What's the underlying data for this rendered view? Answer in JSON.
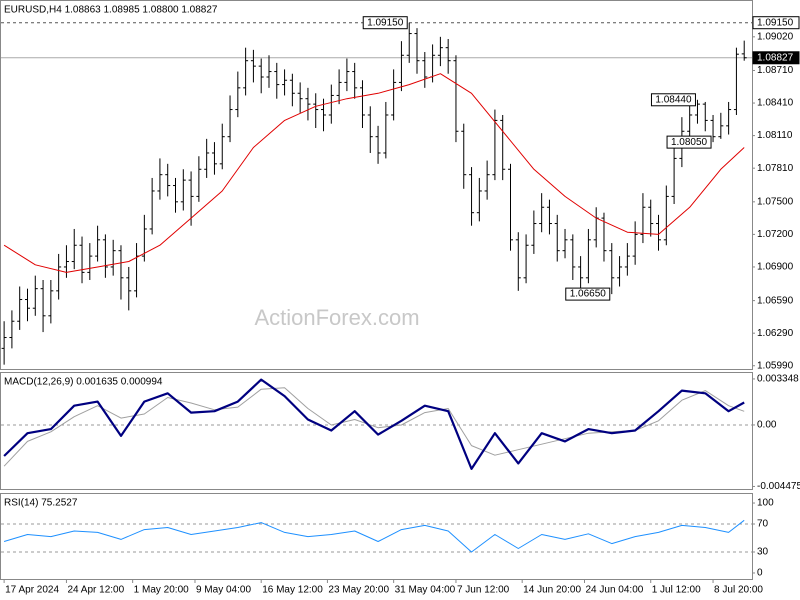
{
  "chart_data": [
    {
      "type": "ohlc",
      "title": "EURUSD,H4  1.08863 1.08985 1.08800 1.08827",
      "watermark": "ActionForex.com",
      "color": "#000000",
      "open": [
        1.0615,
        1.0625,
        1.064,
        1.066,
        1.0652,
        1.067,
        1.0645,
        1.0668,
        1.069,
        1.0695,
        1.071,
        1.0685,
        1.07,
        1.0715,
        1.069,
        1.0705,
        1.068,
        1.0668,
        1.07,
        1.0725,
        1.076,
        1.0775,
        1.0765,
        1.075,
        1.077,
        1.0755,
        1.078,
        1.0795,
        1.0785,
        1.081,
        1.0835,
        1.0855,
        1.088,
        1.0875,
        1.0865,
        1.087,
        1.0858,
        1.0862,
        1.085,
        1.0845,
        1.084,
        1.0835,
        1.083,
        1.0848,
        1.086,
        1.087,
        1.0855,
        1.083,
        1.081,
        1.0795,
        1.083,
        1.086,
        1.0885,
        1.0905,
        1.088,
        1.0865,
        1.0885,
        1.0892,
        1.088,
        1.0815,
        1.0775,
        1.074,
        1.076,
        1.0775,
        1.0825,
        1.078,
        1.0715,
        1.068,
        1.071,
        1.073,
        1.0745,
        1.073,
        1.0705,
        1.0715,
        1.069,
        1.068,
        1.0715,
        1.0735,
        1.0705,
        1.068,
        1.069,
        1.07,
        1.072,
        1.0745,
        1.073,
        1.0715,
        1.0755,
        1.079,
        1.0815,
        1.083,
        1.084,
        1.0825,
        1.081,
        1.082,
        1.0835,
        1.08863
      ],
      "high": [
        1.064,
        1.065,
        1.0672,
        1.067,
        1.0682,
        1.0678,
        1.0678,
        1.0702,
        1.071,
        1.0725,
        1.0718,
        1.0712,
        1.0728,
        1.072,
        1.0715,
        1.071,
        1.069,
        1.0712,
        1.0738,
        1.0772,
        1.079,
        1.0785,
        1.0772,
        1.078,
        1.0778,
        1.0792,
        1.0808,
        1.0805,
        1.0822,
        1.0848,
        1.087,
        1.0892,
        1.089,
        1.0882,
        1.0885,
        1.0878,
        1.0872,
        1.0868,
        1.086,
        1.0855,
        1.085,
        1.0845,
        1.0858,
        1.0872,
        1.0882,
        1.0878,
        1.0862,
        1.0838,
        1.082,
        1.0842,
        1.0872,
        1.0898,
        1.0915,
        1.091,
        1.0888,
        1.0895,
        1.0902,
        1.09,
        1.0885,
        1.0822,
        1.0782,
        1.0772,
        1.0788,
        1.0835,
        1.083,
        1.0785,
        1.0722,
        1.072,
        1.0742,
        1.0758,
        1.0752,
        1.0738,
        1.0725,
        1.072,
        1.07,
        1.0725,
        1.0745,
        1.074,
        1.0712,
        1.07,
        1.0712,
        1.0732,
        1.0758,
        1.0752,
        1.0738,
        1.0765,
        1.0802,
        1.0828,
        1.084,
        1.0844,
        1.0842,
        1.083,
        1.0832,
        1.0842,
        1.0892,
        1.08985
      ],
      "low": [
        1.06,
        1.0615,
        1.0632,
        1.064,
        1.0645,
        1.063,
        1.0638,
        1.066,
        1.068,
        1.0688,
        1.0675,
        1.0678,
        1.0695,
        1.068,
        1.0682,
        1.066,
        1.065,
        1.0662,
        1.0695,
        1.072,
        1.0752,
        1.0755,
        1.074,
        1.0742,
        1.0728,
        1.075,
        1.0772,
        1.0775,
        1.078,
        1.0805,
        1.0828,
        1.0848,
        1.086,
        1.085,
        1.0855,
        1.0845,
        1.0848,
        1.0838,
        1.0832,
        1.0825,
        1.0818,
        1.0815,
        1.0822,
        1.084,
        1.0852,
        1.0845,
        1.0818,
        1.0795,
        1.0785,
        1.079,
        1.0825,
        1.0852,
        1.0878,
        1.0868,
        1.0855,
        1.086,
        1.0875,
        1.0868,
        1.0805,
        1.0762,
        1.0728,
        1.0732,
        1.0752,
        1.077,
        1.077,
        1.0705,
        1.0668,
        1.0675,
        1.0702,
        1.0722,
        1.072,
        1.0695,
        1.0698,
        1.0678,
        1.067,
        1.0675,
        1.0708,
        1.0695,
        1.0665,
        1.0672,
        1.0682,
        1.0692,
        1.0712,
        1.0718,
        1.0705,
        1.071,
        1.0748,
        1.0782,
        1.0808,
        1.0822,
        1.0815,
        1.0805,
        1.0808,
        1.0812,
        1.083,
        1.088
      ],
      "close": [
        1.0625,
        1.064,
        1.066,
        1.0652,
        1.067,
        1.0645,
        1.0668,
        1.069,
        1.0695,
        1.071,
        1.0685,
        1.07,
        1.0715,
        1.069,
        1.0705,
        1.068,
        1.0668,
        1.07,
        1.0725,
        1.076,
        1.0775,
        1.0765,
        1.075,
        1.077,
        1.0755,
        1.078,
        1.0795,
        1.0785,
        1.081,
        1.0835,
        1.0855,
        1.088,
        1.0875,
        1.0865,
        1.087,
        1.0858,
        1.0862,
        1.085,
        1.0845,
        1.084,
        1.0835,
        1.083,
        1.0848,
        1.086,
        1.087,
        1.0855,
        1.083,
        1.081,
        1.0795,
        1.083,
        1.086,
        1.0885,
        1.0905,
        1.088,
        1.0865,
        1.0885,
        1.0892,
        1.088,
        1.0815,
        1.0775,
        1.074,
        1.076,
        1.0775,
        1.0825,
        1.078,
        1.0715,
        1.068,
        1.071,
        1.073,
        1.0745,
        1.073,
        1.0705,
        1.0715,
        1.069,
        1.068,
        1.0715,
        1.0735,
        1.0705,
        1.068,
        1.069,
        1.07,
        1.072,
        1.0745,
        1.073,
        1.0715,
        1.0755,
        1.079,
        1.0815,
        1.083,
        1.084,
        1.0825,
        1.081,
        1.082,
        1.0835,
        1.0886,
        1.08827
      ],
      "ma": {
        "color": "#e00000",
        "x": [
          0,
          4,
          8,
          12,
          16,
          20,
          24,
          28,
          32,
          36,
          40,
          44,
          48,
          52,
          56,
          60,
          64,
          68,
          72,
          76,
          80,
          84,
          88,
          92,
          95
        ],
        "values": [
          1.071,
          1.0692,
          1.0685,
          1.069,
          1.0695,
          1.071,
          1.0735,
          1.076,
          1.08,
          1.0825,
          1.0838,
          1.0845,
          1.085,
          1.0858,
          1.0868,
          1.085,
          1.0815,
          1.078,
          1.0755,
          1.0735,
          1.0722,
          1.072,
          1.0745,
          1.078,
          1.08
        ]
      },
      "xlim": [
        -0.4,
        96
      ],
      "ylim": [
        1.0596,
        1.0935
      ],
      "yticks": [
        {
          "value": 1.0599,
          "label": "1.05990"
        },
        {
          "value": 1.0629,
          "label": "1.06290"
        },
        {
          "value": 1.0659,
          "label": "1.06590"
        },
        {
          "value": 1.069,
          "label": "1.06900"
        },
        {
          "value": 1.072,
          "label": "1.07200"
        },
        {
          "value": 1.075,
          "label": "1.07500"
        },
        {
          "value": 1.0781,
          "label": "1.07810"
        },
        {
          "value": 1.0811,
          "label": "1.08110"
        },
        {
          "value": 1.0841,
          "label": "1.08410"
        },
        {
          "value": 1.0871,
          "label": "1.08710"
        },
        {
          "value": 1.0902,
          "label": "1.09020"
        }
      ],
      "price_lines": [
        {
          "value": 1.0915,
          "label": "1.09150",
          "style": "dashed"
        },
        {
          "value": 1.08827,
          "label": "1.08827",
          "style": "current"
        }
      ],
      "annotations": [
        {
          "text": "1.09150",
          "x": 52,
          "y": 1.0915
        },
        {
          "text": "1.08440",
          "x": 89,
          "y": 1.0844
        },
        {
          "text": "1.08050",
          "x": 91,
          "y": 1.0805
        },
        {
          "text": "1.06650",
          "x": 78,
          "y": 1.0665
        }
      ]
    },
    {
      "type": "line",
      "title": "MACD(12,26,9) 0.001635 0.000994",
      "xlim": [
        -0.4,
        96
      ],
      "ylim": [
        -0.00466,
        0.00378
      ],
      "yticks": [
        0.003348,
        {
          "value": 0,
          "label": "0.00"
        },
        -0.004475
      ],
      "zero_line": true,
      "x": [
        0,
        3,
        6,
        9,
        12,
        15,
        18,
        21,
        24,
        27,
        30,
        33,
        36,
        39,
        42,
        45,
        48,
        51,
        54,
        57,
        60,
        63,
        66,
        69,
        72,
        75,
        78,
        81,
        84,
        87,
        90,
        93,
        95
      ],
      "series": [
        {
          "color": "#a0a0a0",
          "width": 1,
          "values": [
            -0.003,
            -0.0012,
            -0.0005,
            0.0006,
            0.0014,
            0.0005,
            0.0008,
            0.002,
            0.0016,
            0.0011,
            0.0013,
            0.0026,
            0.0027,
            0.0012,
            0,
            0.0004,
            -0.0002,
            0,
            0.0009,
            0.0012,
            -0.0015,
            -0.0022,
            -0.0018,
            -0.0014,
            -0.001,
            -0.0006,
            -0.0005,
            -0.0004,
            0.0003,
            0.0018,
            0.0025,
            0.0014,
            0.000994
          ]
        },
        {
          "color": "#000080",
          "width": 2.2,
          "values": [
            -0.00226,
            -0.0006,
            -0.0003,
            0.0014,
            0.0017,
            -0.0008,
            0.0017,
            0.0023,
            0.0009,
            0.001,
            0.0017,
            0.0033,
            0.0021,
            0.0004,
            -0.0004,
            0.001,
            -0.0007,
            0.0003,
            0.0014,
            0.001,
            -0.0032,
            -0.0006,
            -0.0028,
            -0.0006,
            -0.0012,
            -0.0003,
            -0.0006,
            -0.0004,
            0.001,
            0.0025,
            0.0023,
            0.001,
            0.001635
          ]
        }
      ]
    },
    {
      "type": "line",
      "title": "RSI(14) 75.2527",
      "xlim": [
        -0.4,
        96
      ],
      "ylim": [
        -8.6,
        112.9
      ],
      "yticks": [
        100,
        70,
        30,
        0
      ],
      "levels": [
        70,
        30
      ],
      "x": [
        0,
        3,
        6,
        9,
        12,
        15,
        18,
        21,
        24,
        27,
        30,
        33,
        36,
        39,
        42,
        45,
        48,
        51,
        54,
        57,
        60,
        63,
        66,
        69,
        72,
        75,
        78,
        81,
        84,
        87,
        90,
        93,
        95
      ],
      "series": [
        {
          "color": "#1e90ff",
          "width": 1,
          "values": [
            45,
            55,
            52,
            60,
            58,
            48,
            62,
            65,
            55,
            60,
            65,
            72,
            58,
            52,
            55,
            60,
            45,
            62,
            68,
            60,
            30,
            55,
            35,
            55,
            48,
            56,
            42,
            52,
            58,
            68,
            65,
            58,
            75.2527
          ]
        }
      ],
      "xticks": [
        {
          "value": 0,
          "label": "17 Apr 2024"
        },
        {
          "value": 8,
          "label": "24 Apr 12:00"
        },
        {
          "value": 16.5,
          "label": "1 May 20:00"
        },
        {
          "value": 24.5,
          "label": "9 May 04:00"
        },
        {
          "value": 33,
          "label": "16 May 12:00"
        },
        {
          "value": 41.5,
          "label": "23 May 20:00"
        },
        {
          "value": 50,
          "label": "31 May 04:00"
        },
        {
          "value": 58,
          "label": "7 Jun 12:00"
        },
        {
          "value": 66.5,
          "label": "14 Jun 20:00"
        },
        {
          "value": 74.5,
          "label": "24 Jun 04:00"
        },
        {
          "value": 83,
          "label": "1 Jul 12:00"
        },
        {
          "value": 91,
          "label": "8 Jul 20:00"
        }
      ]
    }
  ]
}
